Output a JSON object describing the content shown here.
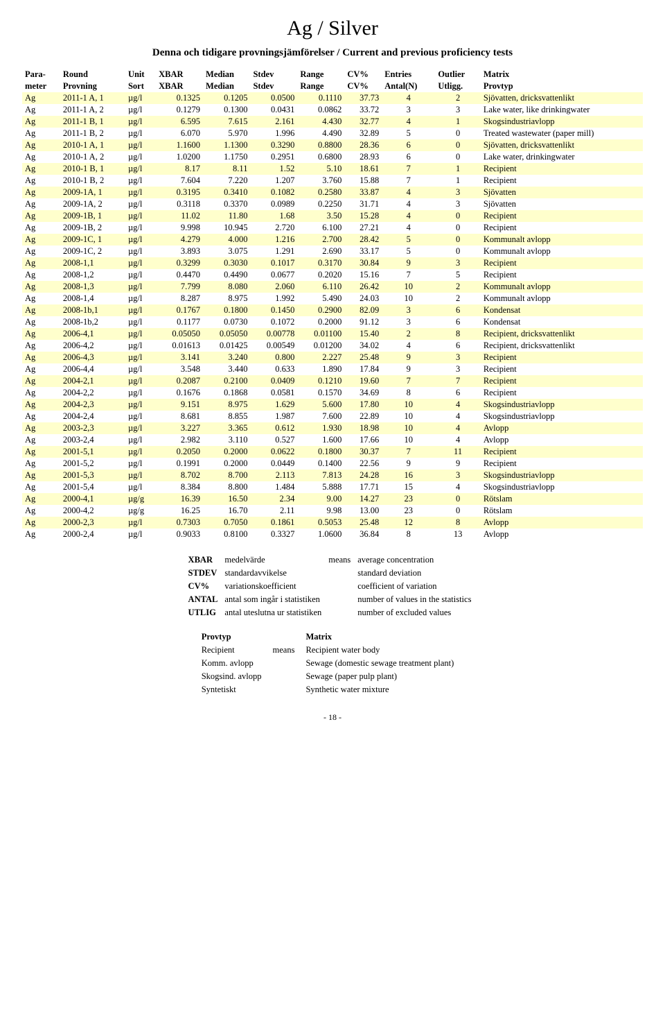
{
  "title": "Ag / Silver",
  "subtitle": "Denna och tidigare provningsjämförelser / Current and previous proficiency tests",
  "page_number": "- 18 -",
  "columns_top": [
    "Para-",
    "Round",
    "Unit",
    "XBAR",
    "Median",
    "Stdev",
    "Range",
    "CV%",
    "Entries",
    "Outlier",
    "Matrix"
  ],
  "columns_bottom": [
    "meter",
    "Provning",
    "Sort",
    "XBAR",
    "Median",
    "Stdev",
    "Range",
    "CV%",
    "Antal(N)",
    "Utligg.",
    "Provtyp"
  ],
  "highlight_color": "#ffffcc",
  "rows": [
    {
      "hi": 1,
      "c": [
        "Ag",
        "2011-1 A, 1",
        "µg/l",
        "0.1325",
        "0.1205",
        "0.0500",
        "0.1110",
        "37.73",
        "4",
        "2",
        "Sjövatten, dricksvattenlikt"
      ]
    },
    {
      "hi": 0,
      "c": [
        "Ag",
        "2011-1 A, 2",
        "µg/l",
        "0.1279",
        "0.1300",
        "0.0431",
        "0.0862",
        "33.72",
        "3",
        "3",
        "Lake water, like drinkingwater"
      ]
    },
    {
      "hi": 1,
      "c": [
        "Ag",
        "2011-1 B, 1",
        "µg/l",
        "6.595",
        "7.615",
        "2.161",
        "4.430",
        "32.77",
        "4",
        "1",
        "Skogsindustriavlopp"
      ]
    },
    {
      "hi": 0,
      "c": [
        "Ag",
        "2011-1 B, 2",
        "µg/l",
        "6.070",
        "5.970",
        "1.996",
        "4.490",
        "32.89",
        "5",
        "0",
        "Treated wastewater (paper mill)"
      ]
    },
    {
      "hi": 1,
      "c": [
        "Ag",
        "2010-1 A, 1",
        "µg/l",
        "1.1600",
        "1.1300",
        "0.3290",
        "0.8800",
        "28.36",
        "6",
        "0",
        "Sjövatten, dricksvattenlikt"
      ]
    },
    {
      "hi": 0,
      "c": [
        "Ag",
        "2010-1 A, 2",
        "µg/l",
        "1.0200",
        "1.1750",
        "0.2951",
        "0.6800",
        "28.93",
        "6",
        "0",
        "Lake water, drinkingwater"
      ]
    },
    {
      "hi": 1,
      "c": [
        "Ag",
        "2010-1 B, 1",
        "µg/l",
        "8.17",
        "8.11",
        "1.52",
        "5.10",
        "18.61",
        "7",
        "1",
        "Recipient"
      ]
    },
    {
      "hi": 0,
      "c": [
        "Ag",
        "2010-1 B, 2",
        "µg/l",
        "7.604",
        "7.220",
        "1.207",
        "3.760",
        "15.88",
        "7",
        "1",
        "Recipient"
      ]
    },
    {
      "hi": 1,
      "c": [
        "Ag",
        "2009-1A, 1",
        "µg/l",
        "0.3195",
        "0.3410",
        "0.1082",
        "0.2580",
        "33.87",
        "4",
        "3",
        "Sjövatten"
      ]
    },
    {
      "hi": 0,
      "c": [
        "Ag",
        "2009-1A, 2",
        "µg/l",
        "0.3118",
        "0.3370",
        "0.0989",
        "0.2250",
        "31.71",
        "4",
        "3",
        "Sjövatten"
      ]
    },
    {
      "hi": 1,
      "c": [
        "Ag",
        "2009-1B, 1",
        "µg/l",
        "11.02",
        "11.80",
        "1.68",
        "3.50",
        "15.28",
        "4",
        "0",
        "Recipient"
      ]
    },
    {
      "hi": 0,
      "c": [
        "Ag",
        "2009-1B, 2",
        "µg/l",
        "9.998",
        "10.945",
        "2.720",
        "6.100",
        "27.21",
        "4",
        "0",
        "Recipient"
      ]
    },
    {
      "hi": 1,
      "c": [
        "Ag",
        "2009-1C, 1",
        "µg/l",
        "4.279",
        "4.000",
        "1.216",
        "2.700",
        "28.42",
        "5",
        "0",
        "Kommunalt avlopp"
      ]
    },
    {
      "hi": 0,
      "c": [
        "Ag",
        "2009-1C, 2",
        "µg/l",
        "3.893",
        "3.075",
        "1.291",
        "2.690",
        "33.17",
        "5",
        "0",
        "Kommunalt avlopp"
      ]
    },
    {
      "hi": 1,
      "c": [
        "Ag",
        "2008-1,1",
        "µg/l",
        "0.3299",
        "0.3030",
        "0.1017",
        "0.3170",
        "30.84",
        "9",
        "3",
        "Recipient"
      ]
    },
    {
      "hi": 0,
      "c": [
        "Ag",
        "2008-1,2",
        "µg/l",
        "0.4470",
        "0.4490",
        "0.0677",
        "0.2020",
        "15.16",
        "7",
        "5",
        "Recipient"
      ]
    },
    {
      "hi": 1,
      "c": [
        "Ag",
        "2008-1,3",
        "µg/l",
        "7.799",
        "8.080",
        "2.060",
        "6.110",
        "26.42",
        "10",
        "2",
        "Kommunalt avlopp"
      ]
    },
    {
      "hi": 0,
      "c": [
        "Ag",
        "2008-1,4",
        "µg/l",
        "8.287",
        "8.975",
        "1.992",
        "5.490",
        "24.03",
        "10",
        "2",
        "Kommunalt avlopp"
      ]
    },
    {
      "hi": 1,
      "c": [
        "Ag",
        "2008-1b,1",
        "µg/l",
        "0.1767",
        "0.1800",
        "0.1450",
        "0.2900",
        "82.09",
        "3",
        "6",
        "Kondensat"
      ]
    },
    {
      "hi": 0,
      "c": [
        "Ag",
        "2008-1b,2",
        "µg/l",
        "0.1177",
        "0.0730",
        "0.1072",
        "0.2000",
        "91.12",
        "3",
        "6",
        "Kondensat"
      ]
    },
    {
      "hi": 1,
      "c": [
        "Ag",
        "2006-4,1",
        "µg/l",
        "0.05050",
        "0.05050",
        "0.00778",
        "0.01100",
        "15.40",
        "2",
        "8",
        "Recipient, dricksvattenlikt"
      ]
    },
    {
      "hi": 0,
      "c": [
        "Ag",
        "2006-4,2",
        "µg/l",
        "0.01613",
        "0.01425",
        "0.00549",
        "0.01200",
        "34.02",
        "4",
        "6",
        "Recipient, dricksvattenlikt"
      ]
    },
    {
      "hi": 1,
      "c": [
        "Ag",
        "2006-4,3",
        "µg/l",
        "3.141",
        "3.240",
        "0.800",
        "2.227",
        "25.48",
        "9",
        "3",
        "Recipient"
      ]
    },
    {
      "hi": 0,
      "c": [
        "Ag",
        "2006-4,4",
        "µg/l",
        "3.548",
        "3.440",
        "0.633",
        "1.890",
        "17.84",
        "9",
        "3",
        "Recipient"
      ]
    },
    {
      "hi": 1,
      "c": [
        "Ag",
        "2004-2,1",
        "µg/l",
        "0.2087",
        "0.2100",
        "0.0409",
        "0.1210",
        "19.60",
        "7",
        "7",
        "Recipient"
      ]
    },
    {
      "hi": 0,
      "c": [
        "Ag",
        "2004-2,2",
        "µg/l",
        "0.1676",
        "0.1868",
        "0.0581",
        "0.1570",
        "34.69",
        "8",
        "6",
        "Recipient"
      ]
    },
    {
      "hi": 1,
      "c": [
        "Ag",
        "2004-2,3",
        "µg/l",
        "9.151",
        "8.975",
        "1.629",
        "5.600",
        "17.80",
        "10",
        "4",
        "Skogsindustriavlopp"
      ]
    },
    {
      "hi": 0,
      "c": [
        "Ag",
        "2004-2,4",
        "µg/l",
        "8.681",
        "8.855",
        "1.987",
        "7.600",
        "22.89",
        "10",
        "4",
        "Skogsindustriavlopp"
      ]
    },
    {
      "hi": 1,
      "c": [
        "Ag",
        "2003-2,3",
        "µg/l",
        "3.227",
        "3.365",
        "0.612",
        "1.930",
        "18.98",
        "10",
        "4",
        "Avlopp"
      ]
    },
    {
      "hi": 0,
      "c": [
        "Ag",
        "2003-2,4",
        "µg/l",
        "2.982",
        "3.110",
        "0.527",
        "1.600",
        "17.66",
        "10",
        "4",
        "Avlopp"
      ]
    },
    {
      "hi": 1,
      "c": [
        "Ag",
        "2001-5,1",
        "µg/l",
        "0.2050",
        "0.2000",
        "0.0622",
        "0.1800",
        "30.37",
        "7",
        "11",
        "Recipient"
      ]
    },
    {
      "hi": 0,
      "c": [
        "Ag",
        "2001-5,2",
        "µg/l",
        "0.1991",
        "0.2000",
        "0.0449",
        "0.1400",
        "22.56",
        "9",
        "9",
        "Recipient"
      ]
    },
    {
      "hi": 1,
      "c": [
        "Ag",
        "2001-5,3",
        "µg/l",
        "8.702",
        "8.700",
        "2.113",
        "7.813",
        "24.28",
        "16",
        "3",
        "Skogsindustriavlopp"
      ]
    },
    {
      "hi": 0,
      "c": [
        "Ag",
        "2001-5,4",
        "µg/l",
        "8.384",
        "8.800",
        "1.484",
        "5.888",
        "17.71",
        "15",
        "4",
        "Skogsindustriavlopp"
      ]
    },
    {
      "hi": 1,
      "c": [
        "Ag",
        "2000-4,1",
        "µg/g",
        "16.39",
        "16.50",
        "2.34",
        "9.00",
        "14.27",
        "23",
        "0",
        "Rötslam"
      ]
    },
    {
      "hi": 0,
      "c": [
        "Ag",
        "2000-4,2",
        "µg/g",
        "16.25",
        "16.70",
        "2.11",
        "9.98",
        "13.00",
        "23",
        "0",
        "Rötslam"
      ]
    },
    {
      "hi": 1,
      "c": [
        "Ag",
        "2000-2,3",
        "µg/l",
        "0.7303",
        "0.7050",
        "0.1861",
        "0.5053",
        "25.48",
        "12",
        "8",
        "Avlopp"
      ]
    },
    {
      "hi": 0,
      "c": [
        "Ag",
        "2000-2,4",
        "µg/l",
        "0.9033",
        "0.8100",
        "0.3327",
        "1.0600",
        "36.84",
        "8",
        "13",
        "Avlopp"
      ]
    }
  ],
  "legend1": [
    {
      "k": "XBAR",
      "sv": "medelvärde",
      "mid": "means",
      "en": "average concentration"
    },
    {
      "k": "STDEV",
      "sv": "standardavvikelse",
      "mid": "",
      "en": "standard deviation"
    },
    {
      "k": "CV%",
      "sv": "variationskoefficient",
      "mid": "",
      "en": "coefficient of variation"
    },
    {
      "k": "ANTAL",
      "sv": "antal som ingår i statistiken",
      "mid": "",
      "en": "number of values in the statistics"
    },
    {
      "k": "UTLIG",
      "sv": "antal uteslutna ur statistiken",
      "mid": "",
      "en": "number of excluded values"
    }
  ],
  "legend2_header": {
    "a": "Provtyp",
    "b": "",
    "c": "Matrix"
  },
  "legend2": [
    {
      "a": "Recipient",
      "b": "means",
      "c": "Recipient water body"
    },
    {
      "a": "Komm. avlopp",
      "b": "",
      "c": "Sewage (domestic sewage treatment plant)"
    },
    {
      "a": "Skogsind. avlopp",
      "b": "",
      "c": "Sewage (paper pulp plant)"
    },
    {
      "a": "Syntetiskt",
      "b": "",
      "c": "Synthetic water mixture"
    }
  ]
}
